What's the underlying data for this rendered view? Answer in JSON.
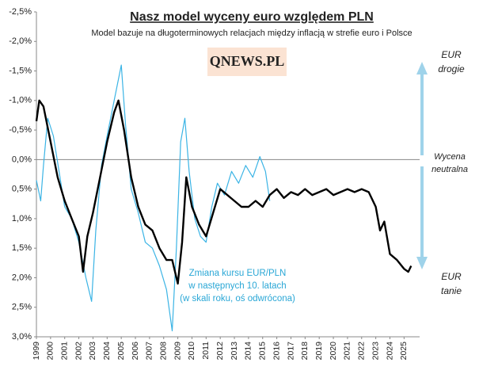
{
  "chart_data": {
    "type": "line",
    "title": "Nasz model wyceny euro względem PLN",
    "subtitle": "Model bazuje na długoterminowych  relacjach między inflacją w strefie euro i Polsce",
    "logo": "QNEWS.PL",
    "annotations": {
      "top": [
        "EUR",
        "drogie"
      ],
      "middle": [
        "Wycena",
        "neutralna"
      ],
      "bottom": [
        "EUR",
        "tanie"
      ],
      "blue": [
        "Zmiana kursu EUR/PLN",
        "w następnych 10. latach",
        "(w skali roku, oś odwrócona)"
      ]
    },
    "xlim": [
      1999,
      2026.1
    ],
    "xticks": [
      1999,
      2000,
      2001,
      2002,
      2003,
      2004,
      2005,
      2006,
      2007,
      2008,
      2009,
      2010,
      2011,
      2012,
      2013,
      2014,
      2015,
      2016,
      2017,
      2018,
      2019,
      2020,
      2021,
      2022,
      2023,
      2024,
      2025
    ],
    "ylim": [
      -2.5,
      3.0
    ],
    "y_inverted": true,
    "yticks": [
      {
        "value": -2.5,
        "label": "-2,5%"
      },
      {
        "value": -2.0,
        "label": "-2,0%"
      },
      {
        "value": -1.5,
        "label": "-1,5%"
      },
      {
        "value": -1.0,
        "label": "-1,0%"
      },
      {
        "value": -0.5,
        "label": "-0,5%"
      },
      {
        "value": 0,
        "label": "0,0%"
      },
      {
        "value": 0.5,
        "label": "0,5%"
      },
      {
        "value": 1.0,
        "label": "1,0%"
      },
      {
        "value": 1.5,
        "label": "1,5%"
      },
      {
        "value": 2.0,
        "label": "2,0%"
      },
      {
        "value": 2.5,
        "label": "2,5%"
      },
      {
        "value": 3.0,
        "label": "3,0%"
      }
    ],
    "series": [
      {
        "color": "#3bb4e5",
        "width": 1.2,
        "x": [
          1999.0,
          1999.3,
          1999.5,
          1999.8,
          2000.2,
          2000.6,
          2001.0,
          2001.5,
          2002.0,
          2002.5,
          2002.9,
          2003.2,
          2003.6,
          2004.0,
          2004.5,
          2005.0,
          2005.3,
          2005.7,
          2006.2,
          2006.7,
          2007.2,
          2007.7,
          2008.2,
          2008.6,
          2008.9,
          2009.2,
          2009.5,
          2009.8,
          2010.2,
          2010.6,
          2011.0,
          2011.4,
          2011.8,
          2012.3,
          2012.8,
          2013.3,
          2013.8,
          2014.3,
          2014.8,
          2015.2,
          2015.5
        ],
        "values": [
          0.35,
          0.7,
          0.1,
          -0.7,
          -0.4,
          0.2,
          0.8,
          1.0,
          1.4,
          2.0,
          2.4,
          1.2,
          0.1,
          -0.4,
          -1.0,
          -1.6,
          -0.6,
          0.5,
          0.9,
          1.4,
          1.5,
          1.8,
          2.2,
          2.9,
          1.5,
          -0.3,
          -0.7,
          0.2,
          1.0,
          1.3,
          1.4,
          0.8,
          0.4,
          0.6,
          0.2,
          0.4,
          0.1,
          0.3,
          -0.05,
          0.2,
          0.7
        ]
      },
      {
        "color": "#000000",
        "width": 2.4,
        "x": [
          1999.0,
          1999.2,
          1999.5,
          2000.0,
          2000.5,
          2001.0,
          2001.5,
          2002.0,
          2002.3,
          2002.6,
          2003.0,
          2003.5,
          2004.0,
          2004.5,
          2004.8,
          2005.2,
          2005.7,
          2006.2,
          2006.7,
          2007.2,
          2007.7,
          2008.2,
          2008.6,
          2009.0,
          2009.3,
          2009.6,
          2010.0,
          2010.5,
          2011.0,
          2011.5,
          2012.0,
          2012.5,
          2013.0,
          2013.5,
          2014.0,
          2014.5,
          2015.0,
          2015.5,
          2016.0,
          2016.5,
          2017.0,
          2017.5,
          2018.0,
          2018.5,
          2019.0,
          2019.5,
          2020.0,
          2020.5,
          2021.0,
          2021.5,
          2022.0,
          2022.5,
          2023.0,
          2023.3,
          2023.6,
          2024.0,
          2024.5,
          2025.0,
          2025.3,
          2025.5
        ],
        "values": [
          -0.65,
          -1.0,
          -0.9,
          -0.3,
          0.3,
          0.7,
          1.0,
          1.3,
          1.9,
          1.3,
          0.9,
          0.3,
          -0.3,
          -0.8,
          -1.0,
          -0.5,
          0.3,
          0.8,
          1.1,
          1.2,
          1.5,
          1.7,
          1.7,
          2.1,
          1.4,
          0.3,
          0.8,
          1.1,
          1.3,
          0.9,
          0.5,
          0.6,
          0.7,
          0.8,
          0.8,
          0.7,
          0.8,
          0.6,
          0.5,
          0.65,
          0.55,
          0.6,
          0.5,
          0.6,
          0.55,
          0.5,
          0.6,
          0.55,
          0.5,
          0.55,
          0.5,
          0.55,
          0.8,
          1.2,
          1.05,
          1.6,
          1.7,
          1.85,
          1.9,
          1.8
        ]
      }
    ]
  }
}
